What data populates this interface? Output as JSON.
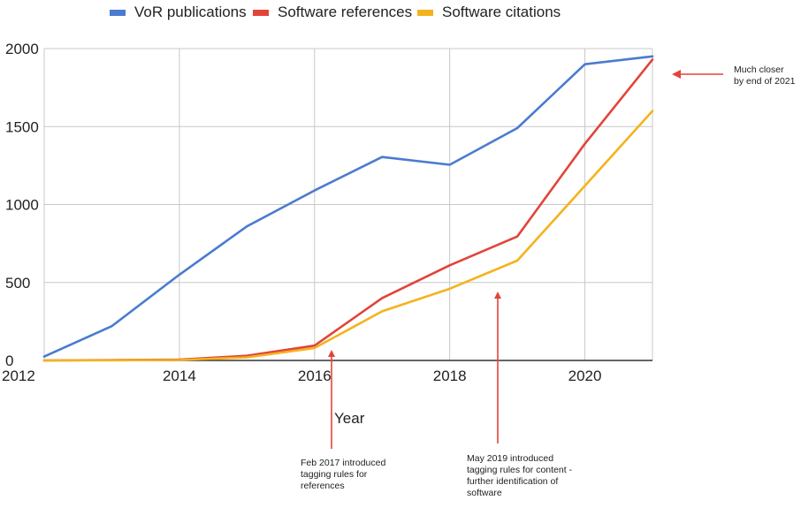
{
  "chart_data": {
    "type": "line",
    "x": [
      2012,
      2013,
      2014,
      2015,
      2016,
      2017,
      2018,
      2019,
      2020,
      2021
    ],
    "series": [
      {
        "name": "VoR publications",
        "color": "#4a7bd0",
        "values": [
          25,
          220,
          550,
          860,
          1090,
          1305,
          1255,
          1490,
          1900,
          1950
        ]
      },
      {
        "name": "Software references",
        "color": "#e2443a",
        "values": [
          0,
          2,
          5,
          30,
          95,
          400,
          610,
          795,
          1390,
          1930
        ]
      },
      {
        "name": "Software citations",
        "color": "#f4b31c",
        "values": [
          0,
          1,
          3,
          20,
          80,
          315,
          460,
          640,
          1120,
          1600
        ]
      }
    ],
    "xlim": [
      2012,
      2021
    ],
    "ylim": [
      0,
      2000
    ],
    "yticks": [
      0,
      500,
      1000,
      1500,
      2000
    ],
    "ytick_labels": [
      "0",
      "500",
      "1000",
      "1500",
      "2000"
    ],
    "xticks": [
      2012,
      2014,
      2016,
      2018,
      2020
    ],
    "xtick_labels": [
      "2012",
      "2014",
      "2016",
      "2018",
      "2020"
    ],
    "xlabel": "Year",
    "ylabel": "",
    "title": "",
    "grid": true,
    "legend_position": "top",
    "annotations": [
      {
        "text": "Feb 2017 introduced tagging rules for references",
        "x": 2016.1,
        "y": 0
      },
      {
        "text": "May 2019 introduced tagging rules for content - further identification of software",
        "x": 2018.7,
        "y": 450
      },
      {
        "text": "Much closer by end of 2021",
        "x": 2021,
        "y": 1840
      }
    ],
    "annotation_color": "#e2443a"
  },
  "legend": {
    "items": [
      "VoR publications",
      "Software references",
      "Software citations"
    ]
  },
  "annotations": {
    "feb2017": [
      "Feb 2017 introduced",
      "tagging rules for",
      "references"
    ],
    "may2019": [
      "May 2019 introduced",
      "tagging rules for content -",
      "further identification of",
      "software"
    ],
    "closer": [
      "Much closer",
      "by end of 2021"
    ]
  }
}
